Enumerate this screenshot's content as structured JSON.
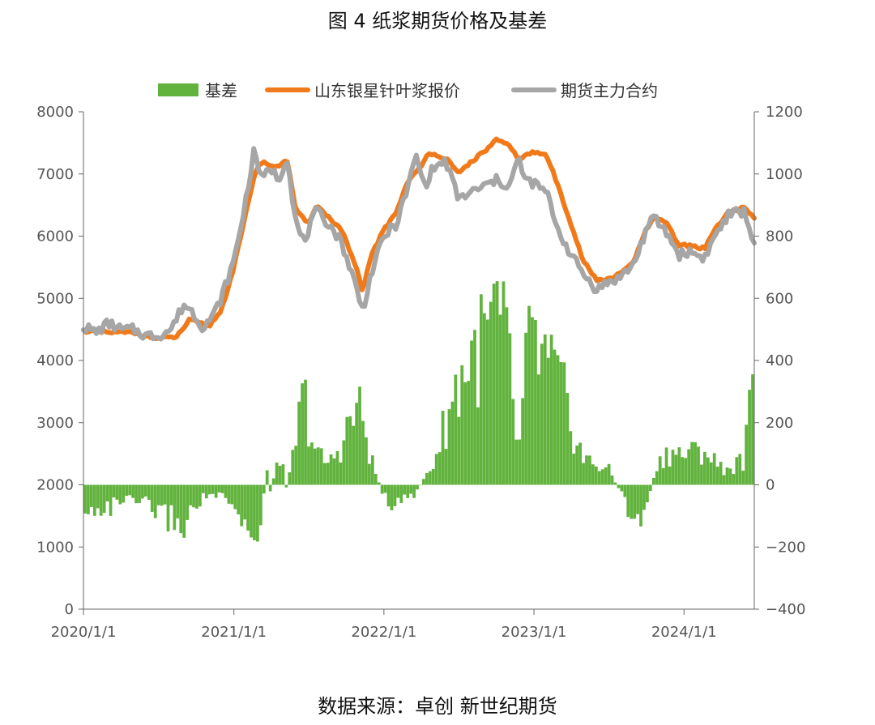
{
  "title": "图 4 纸浆期货价格及基差",
  "source": "数据来源：卓创 新世纪期货",
  "colors": {
    "basis": "#62b33e",
    "spot": "#f07a1a",
    "futures": "#a6a6a6",
    "axis": "#666666"
  },
  "chart_data": {
    "type": "bar+line",
    "x_ticks": [
      "2020/1/1",
      "2021/1/1",
      "2022/1/1",
      "2023/1/1",
      "2024/1/1"
    ],
    "x_range": [
      "2020/1/1",
      "2024/6/20"
    ],
    "y_left": {
      "range": [
        0,
        8000
      ],
      "ticks": [
        "0",
        "1000",
        "2000",
        "3000",
        "4000",
        "5000",
        "6000",
        "7000",
        "8000"
      ]
    },
    "y_right": {
      "range": [
        -400,
        1200
      ],
      "ticks": [
        "−400",
        "−200",
        "0",
        "200",
        "400",
        "600",
        "800",
        "1000",
        "1200"
      ]
    },
    "legend_position": "top",
    "series": [
      {
        "name": "山东银星针叶浆报价",
        "type": "line",
        "axis": "left",
        "points": [
          [
            "2020/1/1",
            4480
          ],
          [
            "2020/3/1",
            4450
          ],
          [
            "2020/5/1",
            4450
          ],
          [
            "2020/7/1",
            4350
          ],
          [
            "2020/8/15",
            4380
          ],
          [
            "2020/9/15",
            4650
          ],
          [
            "2020/11/1",
            4550
          ],
          [
            "2020/12/1",
            4800
          ],
          [
            "2021/1/1",
            5500
          ],
          [
            "2021/1/25",
            6200
          ],
          [
            "2021/2/20",
            7000
          ],
          [
            "2021/3/10",
            7200
          ],
          [
            "2021/4/15",
            7100
          ],
          [
            "2021/5/10",
            7250
          ],
          [
            "2021/6/1",
            6400
          ],
          [
            "2021/7/1",
            6200
          ],
          [
            "2021/7/20",
            6500
          ],
          [
            "2021/8/20",
            6300
          ],
          [
            "2021/9/20",
            6100
          ],
          [
            "2021/10/25",
            5500
          ],
          [
            "2021/11/10",
            5100
          ],
          [
            "2021/12/1",
            5700
          ],
          [
            "2022/1/1",
            6100
          ],
          [
            "2022/2/1",
            6400
          ],
          [
            "2022/3/1",
            6900
          ],
          [
            "2022/4/1",
            7100
          ],
          [
            "2022/4/20",
            7350
          ],
          [
            "2022/6/1",
            7250
          ],
          [
            "2022/7/1",
            7000
          ],
          [
            "2022/8/1",
            7200
          ],
          [
            "2022/9/1",
            7350
          ],
          [
            "2022/10/1",
            7550
          ],
          [
            "2022/11/1",
            7450
          ],
          [
            "2022/11/25",
            7250
          ],
          [
            "2023/1/1",
            7350
          ],
          [
            "2023/2/1",
            7300
          ],
          [
            "2023/3/1",
            6800
          ],
          [
            "2023/4/1",
            6200
          ],
          [
            "2023/5/1",
            5600
          ],
          [
            "2023/6/1",
            5300
          ],
          [
            "2023/7/1",
            5300
          ],
          [
            "2023/8/1",
            5400
          ],
          [
            "2023/9/1",
            5600
          ],
          [
            "2023/10/1",
            6100
          ],
          [
            "2023/10/20",
            6300
          ],
          [
            "2023/11/20",
            6200
          ],
          [
            "2023/12/20",
            5850
          ],
          [
            "2024/1/15",
            5850
          ],
          [
            "2024/2/20",
            5800
          ],
          [
            "2024/3/20",
            6150
          ],
          [
            "2024/4/20",
            6400
          ],
          [
            "2024/5/25",
            6450
          ],
          [
            "2024/6/20",
            6300
          ]
        ]
      },
      {
        "name": "期货主力合约",
        "type": "line",
        "axis": "left",
        "points": [
          [
            "2020/1/1",
            4550
          ],
          [
            "2020/2/1",
            4450
          ],
          [
            "2020/3/1",
            4600
          ],
          [
            "2020/4/1",
            4500
          ],
          [
            "2020/5/1",
            4500
          ],
          [
            "2020/6/1",
            4400
          ],
          [
            "2020/7/1",
            4400
          ],
          [
            "2020/8/1",
            4500
          ],
          [
            "2020/9/1",
            4900
          ],
          [
            "2020/9/20",
            4800
          ],
          [
            "2020/10/15",
            4550
          ],
          [
            "2020/11/10",
            4700
          ],
          [
            "2020/12/1",
            5000
          ],
          [
            "2021/1/1",
            5600
          ],
          [
            "2021/1/25",
            6400
          ],
          [
            "2021/2/20",
            7400
          ],
          [
            "2021/3/10",
            6900
          ],
          [
            "2021/4/1",
            7100
          ],
          [
            "2021/4/20",
            6900
          ],
          [
            "2021/5/10",
            7300
          ],
          [
            "2021/6/1",
            6200
          ],
          [
            "2021/6/20",
            5900
          ],
          [
            "2021/7/20",
            6400
          ],
          [
            "2021/8/20",
            6200
          ],
          [
            "2021/9/20",
            5900
          ],
          [
            "2021/10/25",
            5200
          ],
          [
            "2021/11/10",
            4800
          ],
          [
            "2021/12/1",
            5400
          ],
          [
            "2022/1/1",
            6000
          ],
          [
            "2022/2/1",
            6200
          ],
          [
            "2022/3/1",
            6800
          ],
          [
            "2022/3/20",
            7300
          ],
          [
            "2022/4/10",
            6800
          ],
          [
            "2022/5/1",
            7100
          ],
          [
            "2022/6/1",
            7200
          ],
          [
            "2022/7/1",
            6600
          ],
          [
            "2022/8/1",
            6700
          ],
          [
            "2022/9/1",
            6800
          ],
          [
            "2022/10/1",
            6900
          ],
          [
            "2022/11/1",
            6800
          ],
          [
            "2022/11/25",
            7250
          ],
          [
            "2022/12/10",
            6900
          ],
          [
            "2023/1/1",
            6850
          ],
          [
            "2023/2/1",
            6700
          ],
          [
            "2023/3/1",
            6100
          ],
          [
            "2023/4/1",
            5700
          ],
          [
            "2023/5/1",
            5400
          ],
          [
            "2023/6/1",
            5150
          ],
          [
            "2023/7/1",
            5250
          ],
          [
            "2023/8/1",
            5350
          ],
          [
            "2023/9/1",
            5550
          ],
          [
            "2023/10/1",
            6100
          ],
          [
            "2023/10/20",
            6300
          ],
          [
            "2023/11/20",
            6050
          ],
          [
            "2023/12/20",
            5700
          ],
          [
            "2024/1/15",
            5750
          ],
          [
            "2024/2/20",
            5650
          ],
          [
            "2024/3/20",
            6050
          ],
          [
            "2024/4/20",
            6350
          ],
          [
            "2024/5/25",
            6400
          ],
          [
            "2024/6/20",
            5900
          ]
        ]
      },
      {
        "name": "基差",
        "type": "bar",
        "axis": "right",
        "points": [
          [
            "2020/1/1",
            -150
          ],
          [
            "2020/2/1",
            -80
          ],
          [
            "2020/3/1",
            -100
          ],
          [
            "2020/4/1",
            -60
          ],
          [
            "2020/5/1",
            -70
          ],
          [
            "2020/6/1",
            -80
          ],
          [
            "2020/7/1",
            -110
          ],
          [
            "2020/8/1",
            -130
          ],
          [
            "2020/9/1",
            -160
          ],
          [
            "2020/9/20",
            -110
          ],
          [
            "2020/10/15",
            -50
          ],
          [
            "2020/11/10",
            -40
          ],
          [
            "2020/12/1",
            -50
          ],
          [
            "2021/1/1",
            -100
          ],
          [
            "2021/1/25",
            -160
          ],
          [
            "2021/2/20",
            -200
          ],
          [
            "2021/3/10",
            -120
          ],
          [
            "2021/3/25",
            80
          ],
          [
            "2021/4/1",
            -50
          ],
          [
            "2021/4/20",
            150
          ],
          [
            "2021/5/10",
            -20
          ],
          [
            "2021/6/1",
            180
          ],
          [
            "2021/6/20",
            350
          ],
          [
            "2021/7/20",
            120
          ],
          [
            "2021/8/20",
            80
          ],
          [
            "2021/9/20",
            160
          ],
          [
            "2021/10/25",
            300
          ],
          [
            "2021/11/10",
            260
          ],
          [
            "2021/12/1",
            100
          ],
          [
            "2022/1/1",
            -50
          ],
          [
            "2022/2/1",
            -80
          ],
          [
            "2022/3/1",
            -60
          ],
          [
            "2022/3/20",
            -30
          ],
          [
            "2022/4/10",
            30
          ],
          [
            "2022/5/1",
            80
          ],
          [
            "2022/6/1",
            250
          ],
          [
            "2022/7/1",
            400
          ],
          [
            "2022/8/1",
            500
          ],
          [
            "2022/9/1",
            550
          ],
          [
            "2022/10/1",
            650
          ],
          [
            "2022/11/1",
            500
          ],
          [
            "2022/11/25",
            100
          ],
          [
            "2022/12/10",
            450
          ],
          [
            "2023/1/1",
            550
          ],
          [
            "2023/2/1",
            450
          ],
          [
            "2023/3/1",
            400
          ],
          [
            "2023/4/1",
            250
          ],
          [
            "2023/5/1",
            100
          ],
          [
            "2023/6/1",
            80
          ],
          [
            "2023/7/1",
            60
          ],
          [
            "2023/8/1",
            -30
          ],
          [
            "2023/9/1",
            -150
          ],
          [
            "2023/10/1",
            -100
          ],
          [
            "2023/10/20",
            50
          ],
          [
            "2023/11/20",
            130
          ],
          [
            "2023/12/20",
            120
          ],
          [
            "2024/1/15",
            120
          ],
          [
            "2024/2/20",
            140
          ],
          [
            "2024/3/20",
            80
          ],
          [
            "2024/4/20",
            60
          ],
          [
            "2024/5/25",
            100
          ],
          [
            "2024/6/20",
            400
          ]
        ]
      }
    ]
  }
}
